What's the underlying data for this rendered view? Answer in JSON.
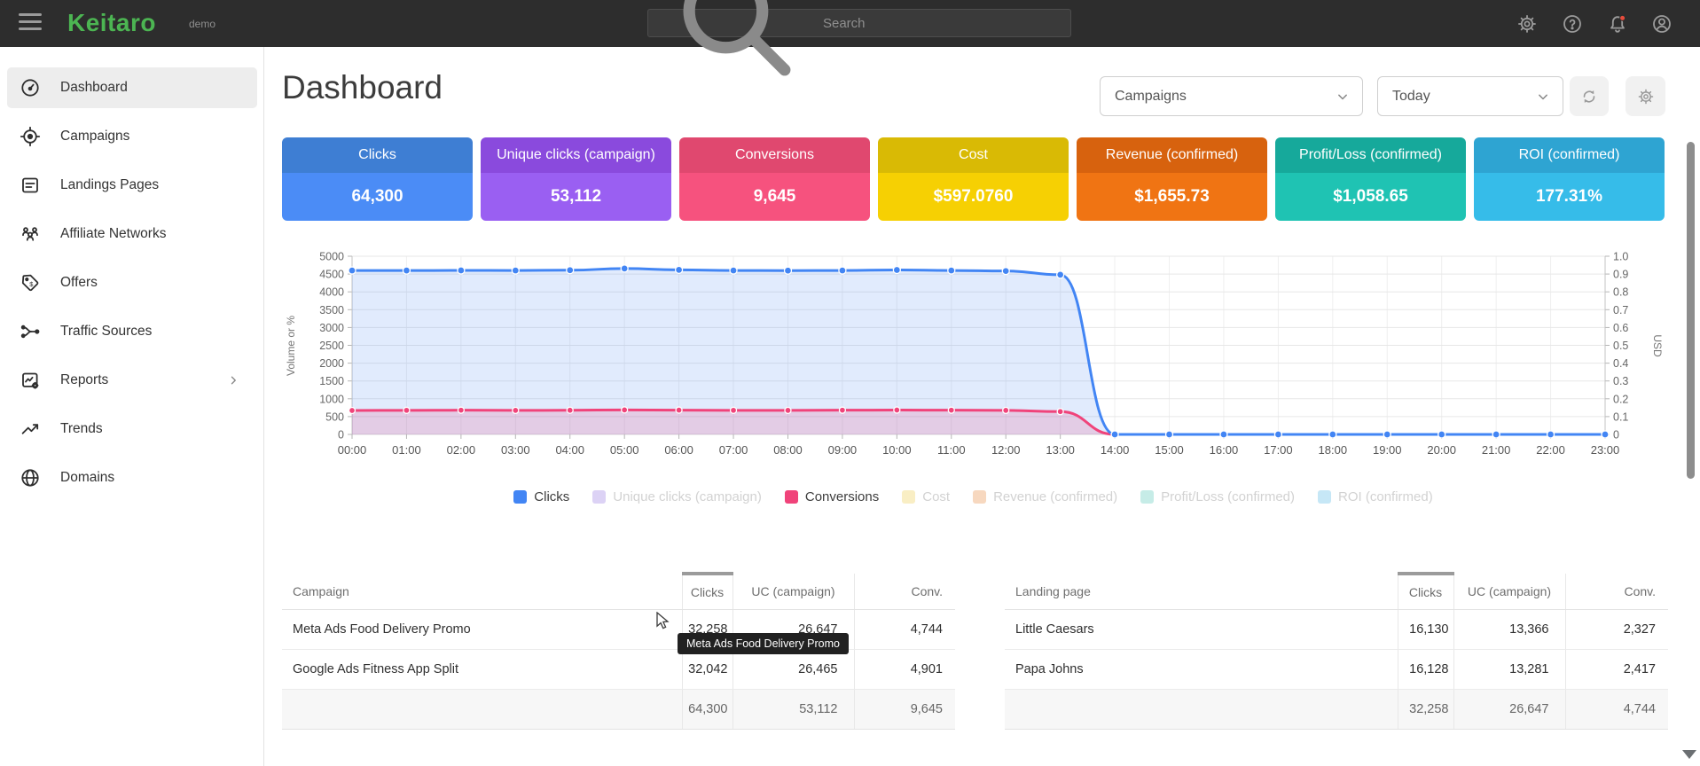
{
  "topbar": {
    "brand": "Keitaro",
    "badge": "demo",
    "search_placeholder": "Search",
    "icons": [
      "settings-icon",
      "help-icon",
      "notifications-icon",
      "account-icon"
    ],
    "notification_dot_color": "#e74c3c",
    "brand_color": "#4cb552"
  },
  "sidebar": {
    "items": [
      {
        "label": "Dashboard",
        "icon": "dashboard-icon",
        "active": true,
        "chevron": false
      },
      {
        "label": "Campaigns",
        "icon": "campaigns-icon",
        "active": false,
        "chevron": false
      },
      {
        "label": "Landings Pages",
        "icon": "landings-icon",
        "active": false,
        "chevron": false
      },
      {
        "label": "Affiliate Networks",
        "icon": "affiliates-icon",
        "active": false,
        "chevron": false
      },
      {
        "label": "Offers",
        "icon": "offers-icon",
        "active": false,
        "chevron": false
      },
      {
        "label": "Traffic Sources",
        "icon": "traffic-icon",
        "active": false,
        "chevron": false
      },
      {
        "label": "Reports",
        "icon": "reports-icon",
        "active": false,
        "chevron": true
      },
      {
        "label": "Trends",
        "icon": "trends-icon",
        "active": false,
        "chevron": false
      },
      {
        "label": "Domains",
        "icon": "domains-icon",
        "active": false,
        "chevron": false
      }
    ]
  },
  "header": {
    "title": "Dashboard",
    "campaign_filter": "Campaigns",
    "date_filter": "Today"
  },
  "stat_cards": [
    {
      "label": "Clicks",
      "value": "64,300",
      "header_color": "#3e7ed3",
      "body_color": "#4b8cf6"
    },
    {
      "label": "Unique clicks (campaign)",
      "value": "53,112",
      "header_color": "#8a4add",
      "body_color": "#9a5ff2"
    },
    {
      "label": "Conversions",
      "value": "9,645",
      "header_color": "#e0486f",
      "body_color": "#f6527e"
    },
    {
      "label": "Cost",
      "value": "$597.0760",
      "header_color": "#d9ba05",
      "body_color": "#f6d003"
    },
    {
      "label": "Revenue (confirmed)",
      "value": "$1,655.73",
      "header_color": "#d7620e",
      "body_color": "#f07413"
    },
    {
      "label": "Profit/Loss (confirmed)",
      "value": "$1,058.65",
      "header_color": "#16a99b",
      "body_color": "#1fc3b3"
    },
    {
      "label": "ROI (confirmed)",
      "value": "177.31%",
      "header_color": "#2ea4d2",
      "body_color": "#36bce9"
    }
  ],
  "chart_data": {
    "type": "line",
    "x": [
      "00:00",
      "01:00",
      "02:00",
      "03:00",
      "04:00",
      "05:00",
      "06:00",
      "07:00",
      "08:00",
      "09:00",
      "10:00",
      "11:00",
      "12:00",
      "13:00",
      "14:00",
      "15:00",
      "16:00",
      "17:00",
      "18:00",
      "19:00",
      "20:00",
      "21:00",
      "22:00",
      "23:00"
    ],
    "y_left": {
      "title": "Volume or %",
      "min": 0,
      "max": 5000,
      "ticks": [
        "0",
        "500",
        "1000",
        "1500",
        "2000",
        "2500",
        "3000",
        "3500",
        "4000",
        "4500",
        "5000"
      ]
    },
    "y_right": {
      "title": "USD",
      "min": 0,
      "max": 1,
      "ticks": [
        "0",
        "0.1",
        "0.2",
        "0.3",
        "0.4",
        "0.5",
        "0.6",
        "0.7",
        "0.8",
        "0.9",
        "1.0"
      ]
    },
    "grid": true,
    "legend_position": "bottom",
    "series": [
      {
        "name": "Conversions",
        "axis": "left",
        "color": "#f0437a",
        "fill": "rgba(240,67,122,0.18)",
        "dot_radius": 3.5,
        "values": [
          672,
          676,
          680,
          674,
          678,
          688,
          682,
          676,
          674,
          680,
          684,
          680,
          674,
          640,
          0,
          0,
          0,
          0,
          0,
          0,
          0,
          0,
          0,
          0
        ]
      },
      {
        "name": "Clicks",
        "axis": "left",
        "color": "#4285f4",
        "fill": "rgba(66,133,244,0.16)",
        "dot_radius": 4,
        "values": [
          4600,
          4598,
          4602,
          4600,
          4608,
          4655,
          4618,
          4600,
          4597,
          4600,
          4615,
          4600,
          4585,
          4480,
          0,
          0,
          0,
          0,
          0,
          0,
          0,
          0,
          0,
          0
        ]
      }
    ],
    "legend": [
      {
        "name": "Clicks",
        "color": "#4285f4",
        "active": true
      },
      {
        "name": "Unique clicks (campaign)",
        "color": "#dcd2f5",
        "active": false
      },
      {
        "name": "Conversions",
        "color": "#f0437a",
        "active": true
      },
      {
        "name": "Cost",
        "color": "#f9eec4",
        "active": false
      },
      {
        "name": "Revenue (confirmed)",
        "color": "#f7d8bf",
        "active": false
      },
      {
        "name": "Profit/Loss (confirmed)",
        "color": "#c6ece7",
        "active": false
      },
      {
        "name": "ROI (confirmed)",
        "color": "#c6e7f6",
        "active": false
      }
    ]
  },
  "tables": [
    {
      "id": "campaigns",
      "headers": [
        "Campaign",
        "Clicks",
        "UC (campaign)",
        "Conv."
      ],
      "sorted_column": "Clicks",
      "rows": [
        [
          "Meta Ads Food Delivery Promo",
          "32,258",
          "26,647",
          "4,744"
        ],
        [
          "Google Ads Fitness App Split",
          "32,042",
          "26,465",
          "4,901"
        ]
      ],
      "footer": [
        "",
        "64,300",
        "53,112",
        "9,645"
      ]
    },
    {
      "id": "landings",
      "headers": [
        "Landing page",
        "Clicks",
        "UC (campaign)",
        "Conv."
      ],
      "sorted_column": "Clicks",
      "rows": [
        [
          "Little Caesars",
          "16,130",
          "13,366",
          "2,327"
        ],
        [
          "Papa Johns",
          "16,128",
          "13,281",
          "2,417"
        ]
      ],
      "footer": [
        "",
        "32,258",
        "26,647",
        "4,744"
      ]
    }
  ],
  "tooltip": {
    "text": "Meta Ads Food Delivery Promo"
  }
}
